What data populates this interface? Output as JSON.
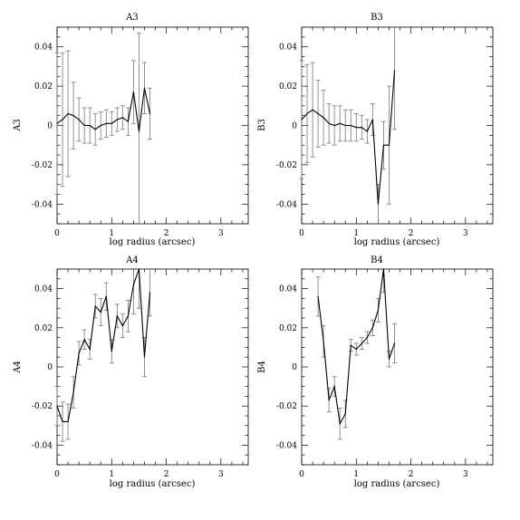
{
  "chart_data": [
    {
      "type": "line",
      "title": "A3",
      "xlabel": "log radius (arcsec)",
      "ylabel": "A3",
      "xlim": [
        0,
        3.5
      ],
      "ylim": [
        -0.05,
        0.05
      ],
      "xticks": [
        "0",
        "1",
        "2",
        "3"
      ],
      "yticks": [
        "-0.04",
        "-0.02",
        "0",
        "0.02",
        "0.04"
      ],
      "series": [
        {
          "x": [
            0.0,
            0.1,
            0.2,
            0.3,
            0.4,
            0.5,
            0.6,
            0.7,
            0.8,
            0.9,
            1.0,
            1.1,
            1.2,
            1.3,
            1.4,
            1.5,
            1.6,
            1.7
          ],
          "y": [
            0.001,
            0.003,
            0.006,
            0.005,
            0.003,
            0.0,
            0.0,
            -0.002,
            0.0,
            0.001,
            0.001,
            0.003,
            0.004,
            0.002,
            0.017,
            -0.003,
            0.019,
            0.006
          ],
          "err": [
            0.036,
            0.034,
            0.032,
            0.017,
            0.011,
            0.009,
            0.009,
            0.008,
            0.007,
            0.007,
            0.006,
            0.006,
            0.006,
            0.007,
            0.016,
            0.05,
            0.013,
            0.013
          ]
        }
      ]
    },
    {
      "type": "line",
      "title": "B3",
      "xlabel": "log radius (arcsec)",
      "ylabel": "B3",
      "xlim": [
        0,
        3.5
      ],
      "ylim": [
        -0.05,
        0.05
      ],
      "xticks": [
        "0",
        "1",
        "2",
        "3"
      ],
      "yticks": [
        "-0.04",
        "-0.02",
        "0",
        "0.02",
        "0.04"
      ],
      "series": [
        {
          "x": [
            0.0,
            0.1,
            0.2,
            0.3,
            0.4,
            0.5,
            0.6,
            0.7,
            0.8,
            0.9,
            1.0,
            1.1,
            1.2,
            1.3,
            1.4,
            1.5,
            1.6,
            1.7
          ],
          "y": [
            0.003,
            0.006,
            0.008,
            0.006,
            0.004,
            0.001,
            0.0,
            0.001,
            0.0,
            0.0,
            -0.001,
            -0.001,
            -0.003,
            0.003,
            -0.04,
            -0.01,
            -0.01,
            0.028
          ],
          "err": [
            0.03,
            0.025,
            0.024,
            0.017,
            0.014,
            0.01,
            0.01,
            0.009,
            0.008,
            0.008,
            0.007,
            0.006,
            0.006,
            0.008,
            0.01,
            0.012,
            0.03,
            0.03
          ]
        }
      ]
    },
    {
      "type": "line",
      "title": "A4",
      "xlabel": "log radius (arcsec)",
      "ylabel": "A4",
      "xlim": [
        0,
        3.5
      ],
      "ylim": [
        -0.05,
        0.05
      ],
      "xticks": [
        "0",
        "1",
        "2",
        "3"
      ],
      "yticks": [
        "-0.04",
        "-0.02",
        "0",
        "0.02",
        "0.04"
      ],
      "series": [
        {
          "x": [
            0.0,
            0.1,
            0.2,
            0.3,
            0.4,
            0.5,
            0.6,
            0.7,
            0.8,
            0.9,
            1.0,
            1.1,
            1.2,
            1.3,
            1.4,
            1.5,
            1.6,
            1.7
          ],
          "y": [
            -0.02,
            -0.028,
            -0.028,
            -0.013,
            0.007,
            0.014,
            0.009,
            0.031,
            0.028,
            0.036,
            0.008,
            0.026,
            0.021,
            0.026,
            0.042,
            0.05,
            0.005,
            0.038
          ],
          "err": [
            0.01,
            0.01,
            0.009,
            0.008,
            0.006,
            0.005,
            0.005,
            0.006,
            0.007,
            0.007,
            0.006,
            0.006,
            0.006,
            0.008,
            0.015,
            0.02,
            0.01,
            0.012
          ]
        }
      ]
    },
    {
      "type": "line",
      "title": "B4",
      "xlabel": "log radius (arcsec)",
      "ylabel": "B4",
      "xlim": [
        0,
        3.5
      ],
      "ylim": [
        -0.05,
        0.05
      ],
      "xticks": [
        "0",
        "1",
        "2",
        "3"
      ],
      "yticks": [
        "-0.04",
        "-0.02",
        "0",
        "0.02",
        "0.04"
      ],
      "series": [
        {
          "x": [
            0.3,
            0.4,
            0.5,
            0.6,
            0.7,
            0.8,
            0.9,
            1.0,
            1.1,
            1.2,
            1.3,
            1.4,
            1.5,
            1.6,
            1.7
          ],
          "y": [
            0.036,
            0.013,
            -0.017,
            -0.01,
            -0.029,
            -0.024,
            0.011,
            0.009,
            0.012,
            0.015,
            0.02,
            0.029,
            0.05,
            0.004,
            0.012
          ],
          "err": [
            0.01,
            0.008,
            0.006,
            0.005,
            0.008,
            0.007,
            0.003,
            0.003,
            0.003,
            0.003,
            0.004,
            0.006,
            0.012,
            0.004,
            0.01
          ]
        }
      ]
    }
  ]
}
